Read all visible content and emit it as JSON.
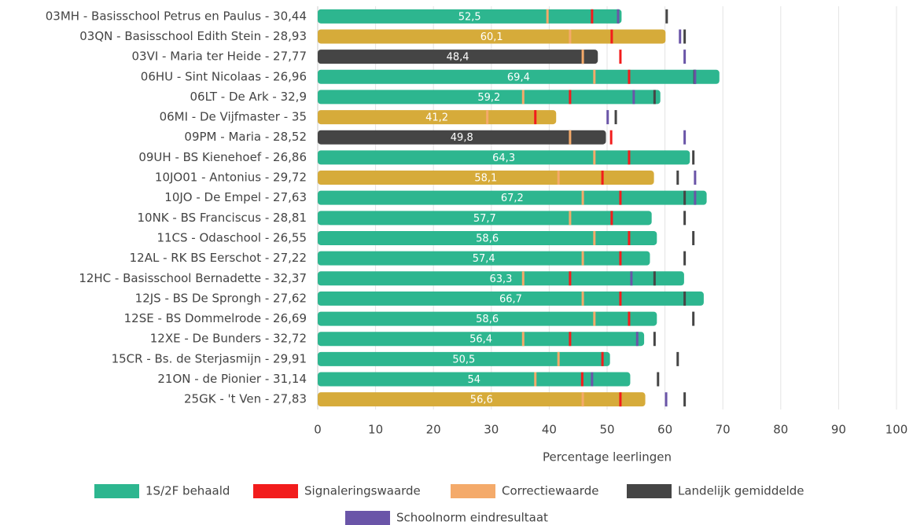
{
  "chart_data": {
    "type": "bar",
    "orientation": "horizontal",
    "categories": [
      "03MH - Basisschool Petrus en Paulus - 30,44",
      "03QN - Basisschool Edith Stein - 28,93",
      "03VI - Maria ter Heide - 27,77",
      "06HU - Sint Nicolaas - 26,96",
      "06LT - De Ark - 32,9",
      "06MI - De Vijfmaster - 35",
      "09PM - Maria - 28,52",
      "09UH - BS Kienehoef - 26,86",
      "10JO01 - Antonius - 29,72",
      "10JO - De Empel - 27,63",
      "10NK - BS Franciscus - 28,81",
      "11CS - Odaschool - 26,55",
      "12AL - RK BS Eerschot - 27,22",
      "12HC - Basisschool Bernadette - 32,37",
      "12JS - BS De Sprongh - 27,62",
      "12SE - BS Dommelrode - 26,69",
      "12XE - De Bunders - 32,72",
      "15CR - Bs. de Sterjasmijn - 29,91",
      "21ON - de Pionier - 31,14",
      "25GK - 't Ven - 27,83"
    ],
    "series": [
      {
        "name": "1S/2F behaald",
        "color": "#2db68f",
        "values": [
          52.5,
          60.1,
          48.4,
          69.4,
          59.2,
          41.2,
          49.8,
          64.3,
          58.1,
          67.2,
          57.7,
          58.6,
          57.4,
          63.3,
          66.7,
          58.6,
          56.4,
          50.5,
          54,
          56.6
        ],
        "value_labels": [
          "52,5",
          "60,1",
          "48,4",
          "69,4",
          "59,2",
          "41,2",
          "49,8",
          "64,3",
          "58,1",
          "67,2",
          "57,7",
          "58,6",
          "57,4",
          "63,3",
          "66,7",
          "58,6",
          "56,4",
          "50,5",
          "54",
          "56,6"
        ],
        "bar_colors": [
          "#2db68f",
          "#d6ab3a",
          "#454545",
          "#2db68f",
          "#2db68f",
          "#d6ab3a",
          "#454545",
          "#2db68f",
          "#d6ab3a",
          "#2db68f",
          "#2db68f",
          "#2db68f",
          "#2db68f",
          "#2db68f",
          "#2db68f",
          "#2db68f",
          "#2db68f",
          "#2db68f",
          "#2db68f",
          "#d6ab3a"
        ]
      },
      {
        "name": "Signaleringswaarde",
        "color": "#f21c1c",
        "values": [
          47.4,
          50.8,
          52.3,
          53.8,
          43.6,
          37.6,
          50.7,
          53.8,
          49.2,
          52.3,
          50.8,
          53.8,
          52.3,
          43.6,
          52.3,
          53.8,
          43.6,
          49.2,
          45.7,
          52.3
        ]
      },
      {
        "name": "Correctiewaarde",
        "color": "#f4aa6a",
        "values": [
          39.7,
          43.6,
          45.8,
          47.8,
          35.5,
          29.3,
          43.6,
          47.8,
          41.6,
          45.8,
          43.6,
          47.8,
          45.8,
          35.5,
          45.8,
          47.8,
          35.5,
          41.6,
          37.6,
          45.8
        ]
      },
      {
        "name": "Landelijk gemiddelde",
        "color": "#454545",
        "values": [
          60.3,
          63.4,
          null,
          65.1,
          58.2,
          51.5,
          null,
          64.9,
          62.2,
          63.4,
          63.4,
          64.9,
          63.4,
          58.2,
          63.4,
          64.9,
          58.2,
          62.2,
          58.8,
          63.4
        ]
      },
      {
        "name": "Schoolnorm eindresultaat",
        "color": "#6a55a8",
        "values": [
          51.9,
          62.6,
          63.4,
          65.2,
          54.6,
          50.1,
          63.4,
          null,
          65.2,
          65.2,
          null,
          null,
          null,
          54.2,
          null,
          null,
          55.2,
          null,
          47.4,
          60.2
        ]
      }
    ],
    "xlabel": "Percentage leerlingen",
    "xlim": [
      0,
      100
    ],
    "xticks": [
      0,
      10,
      20,
      30,
      40,
      50,
      60,
      70,
      80,
      90,
      100
    ],
    "grid": true
  }
}
